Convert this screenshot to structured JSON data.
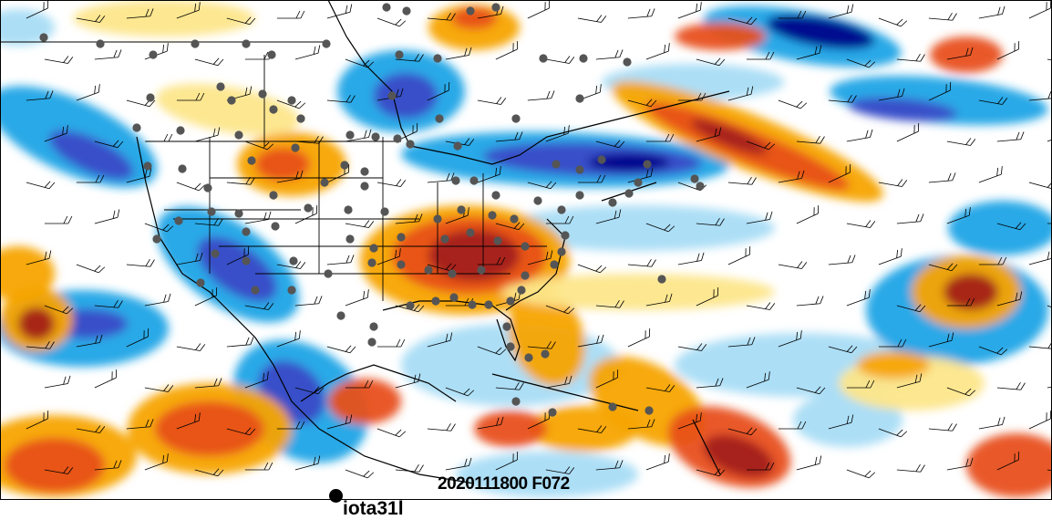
{
  "map": {
    "run_label": "2020111800 F072",
    "storm_label": "iota31l",
    "palette": {
      "cold_darkest": "#00008b",
      "cold_dark": "#3a4bc8",
      "cold_mid": "#1ea4e6",
      "cold_light": "#a8dcf6",
      "neutral": "#ffffff",
      "warm_light": "#fde68a",
      "warm_mid": "#f7a400",
      "warm_dark": "#e8501a",
      "warm_darkest": "#a3201a",
      "station": "#555555",
      "storm": "#000000"
    },
    "icons": [
      "wind-barb-icon",
      "station-marker-icon",
      "storm-marker-icon"
    ]
  }
}
